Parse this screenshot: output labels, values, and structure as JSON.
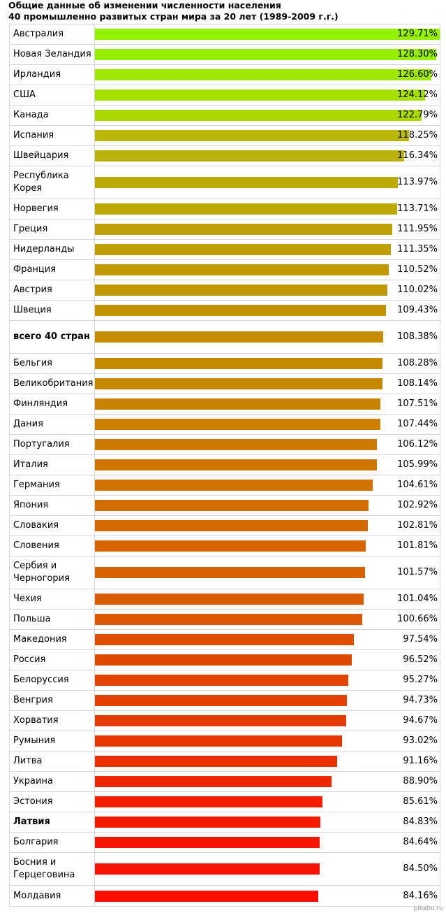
{
  "title_line1": "Общие данные об изменении численности населения",
  "title_line2": "40 промышленно развитых стран мира за 20 лет (1989-2009 г.г.)",
  "watermark": "pikabu.ru",
  "chart_data": {
    "type": "bar",
    "orientation": "horizontal",
    "title": "Общие данные об изменении численности населения 40 промышленно развитых стран мира за 20 лет (1989-2009 г.г.)",
    "unit": "%",
    "xlim": [
      0,
      130
    ],
    "categories": [
      "Австралия",
      "Новая Зеландия",
      "Ирландия",
      "США",
      "Канада",
      "Испания",
      "Швейцария",
      "Республика Корея",
      "Норвегия",
      "Греция",
      "Нидерланды",
      "Франция",
      "Австрия",
      "Швеция",
      "всего 40 стран",
      "Бельгия",
      "Великобритания",
      "Финляндия",
      "Дания",
      "Португалия",
      "Италия",
      "Германия",
      "Япония",
      "Словакия",
      "Словения",
      "Сербия и Черногория",
      "Чехия",
      "Польша",
      "Македония",
      "Россия",
      "Белоруссия",
      "Венгрия",
      "Хорватия",
      "Румыния",
      "Литва",
      "Украина",
      "Эстония",
      "Латвия",
      "Болгария",
      "Босния и Герцеговина",
      "Молдавия"
    ],
    "values": [
      129.71,
      128.3,
      126.6,
      124.12,
      122.79,
      118.25,
      116.34,
      113.97,
      113.71,
      111.95,
      111.35,
      110.52,
      110.02,
      109.43,
      108.38,
      108.28,
      108.14,
      107.51,
      107.44,
      106.12,
      105.99,
      104.61,
      102.92,
      102.81,
      101.81,
      101.57,
      101.04,
      100.66,
      97.54,
      96.52,
      95.27,
      94.73,
      94.67,
      93.02,
      91.16,
      88.9,
      85.61,
      84.83,
      84.64,
      84.5,
      84.16
    ],
    "labels": [
      "129.71%",
      "128.30%",
      "126.60%",
      "124.12%",
      "122.79%",
      "118.25%",
      "116.34%",
      "113.97%",
      "113.71%",
      "111.95%",
      "111.35%",
      "110.52%",
      "110.02%",
      "109.43%",
      "108.38%",
      "108.28%",
      "108.14%",
      "107.51%",
      "107.44%",
      "106.12%",
      "105.99%",
      "104.61%",
      "102.92%",
      "102.81%",
      "101.81%",
      "101.57%",
      "101.04%",
      "100.66%",
      "97.54%",
      "96.52%",
      "95.27%",
      "94.73%",
      "94.67%",
      "93.02%",
      "91.16%",
      "88.90%",
      "85.61%",
      "84.83%",
      "84.64%",
      "84.50%",
      "84.16%"
    ],
    "bold_categories": [
      "всего 40 стран",
      "Латвия"
    ],
    "colors": [
      "#92f200",
      "#96ef00",
      "#9ee700",
      "#a6e000",
      "#a9d800",
      "#bab70a",
      "#bab20a",
      "#bcab07",
      "#bca906",
      "#bea107",
      "#c09f06",
      "#c29903",
      "#c29703",
      "#c29302",
      "#c68d00",
      "#c68a00",
      "#c88700",
      "#ca8300",
      "#cc8000",
      "#cc7a00",
      "#ce7700",
      "#d27200",
      "#d26c00",
      "#d46900",
      "#d66500",
      "#d86200",
      "#da5c00",
      "#dc5800",
      "#de4f00",
      "#e04800",
      "#e24400",
      "#e44000",
      "#e43c00",
      "#e83600",
      "#ea2f00",
      "#ee2600",
      "#f41e00",
      "#f41a00",
      "#f61600",
      "#f81200",
      "#fa0e00"
    ]
  }
}
